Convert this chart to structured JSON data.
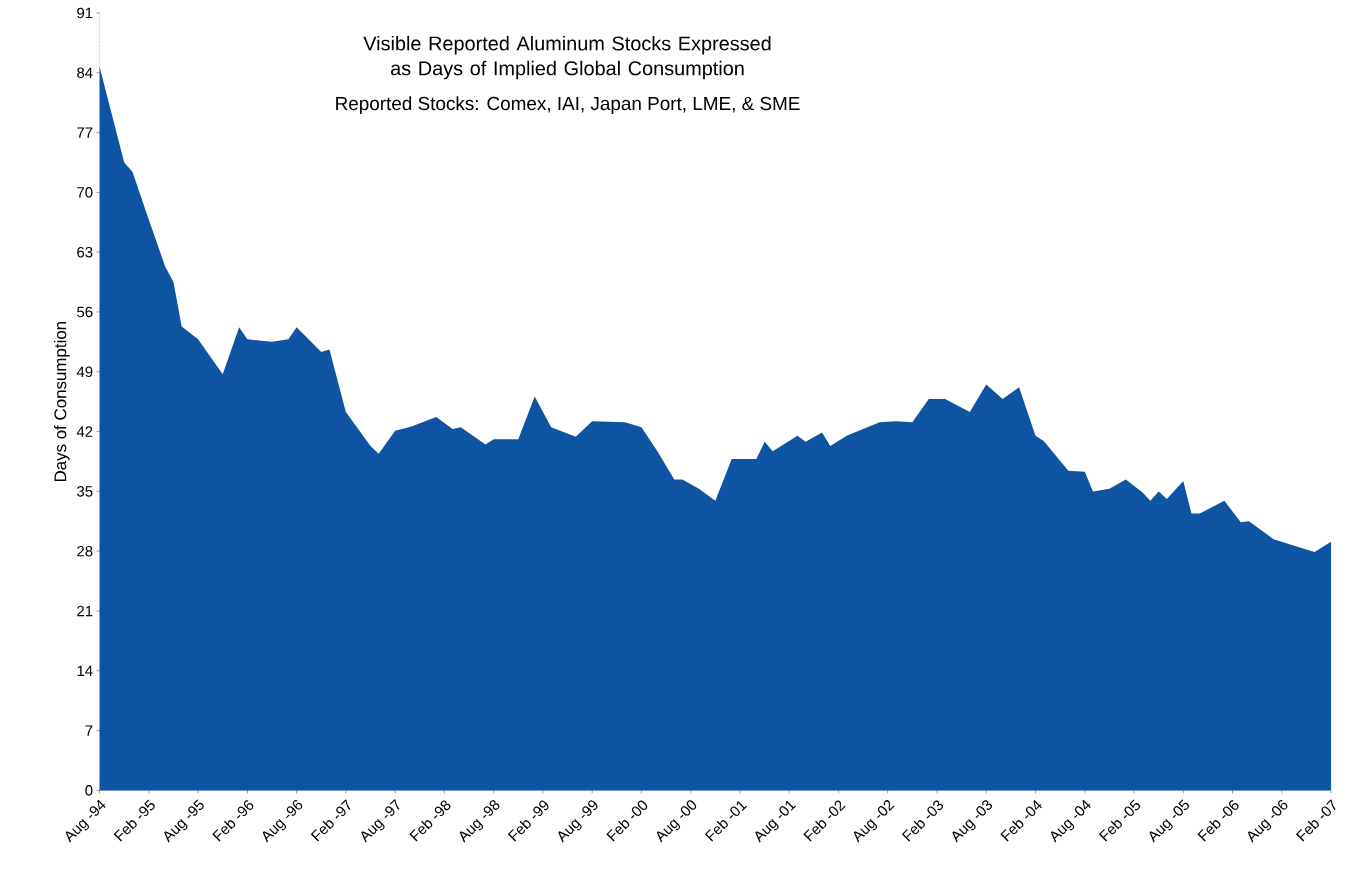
{
  "chart_data": {
    "type": "area",
    "title": "Visible Reported Aluminum Stocks Expressed\nas Days of Implied Global Consumption",
    "subtitle": "Reported Stocks:  Comex, IAI, Japan Port, LME, & SME",
    "ylabel": "Days of Consumption",
    "x": [
      "1994-08",
      "1994-11",
      "1994-12",
      "1995-02",
      "1995-04",
      "1995-05",
      "1995-06",
      "1995-08",
      "1995-11",
      "1996-01",
      "1996-02",
      "1996-05",
      "1996-07",
      "1996-08",
      "1996-11",
      "1996-12",
      "1997-02",
      "1997-05",
      "1997-06",
      "1997-08",
      "1997-10",
      "1998-01",
      "1998-03",
      "1998-04",
      "1998-07",
      "1998-08",
      "1998-11",
      "1999-01",
      "1999-03",
      "1999-06",
      "1999-08",
      "1999-12",
      "2000-02",
      "2000-04",
      "2000-06",
      "2000-07",
      "2000-09",
      "2000-11",
      "2001-01",
      "2001-04",
      "2001-05",
      "2001-06",
      "2001-09",
      "2001-10",
      "2001-12",
      "2002-01",
      "2002-03",
      "2002-07",
      "2002-09",
      "2002-11",
      "2003-01",
      "2003-03",
      "2003-06",
      "2003-08",
      "2003-10",
      "2003-12",
      "2004-02",
      "2004-03",
      "2004-06",
      "2004-08",
      "2004-09",
      "2004-11",
      "2005-01",
      "2005-03",
      "2005-04",
      "2005-05",
      "2005-06",
      "2005-08",
      "2005-09",
      "2005-10",
      "2006-01",
      "2006-03",
      "2006-04",
      "2006-07",
      "2006-10",
      "2006-12",
      "2007-02"
    ],
    "series": [
      {
        "color": "#0f54a3",
        "values": [
          84.7,
          73.5,
          72.4,
          66.8,
          61.3,
          59.5,
          54.3,
          52.8,
          48.7,
          54.2,
          52.8,
          52.5,
          52.8,
          54.2,
          51.3,
          51.6,
          44.3,
          40.3,
          39.4,
          42.1,
          42.6,
          43.7,
          42.3,
          42.5,
          40.5,
          41.1,
          41.1,
          46.1,
          42.5,
          41.4,
          43.2,
          43.1,
          42.5,
          39.6,
          36.4,
          36.4,
          35.3,
          33.9,
          38.8,
          38.8,
          40.8,
          39.7,
          41.5,
          40.8,
          41.9,
          40.3,
          41.5,
          43.1,
          43.2,
          43.1,
          45.8,
          45.8,
          44.3,
          47.5,
          45.8,
          47.2,
          41.5,
          40.9,
          37.4,
          37.3,
          35.0,
          35.3,
          36.4,
          34.9,
          33.9,
          35.0,
          34.1,
          36.2,
          32.4,
          32.4,
          33.9,
          31.4,
          31.5,
          29.4,
          28.5,
          27.9,
          29.1
        ]
      }
    ],
    "xlim": [
      "1994-08",
      "2007-02"
    ],
    "xticks": [
      {
        "value": "1994-08",
        "label": "Aug -94"
      },
      {
        "value": "1995-02",
        "label": "Feb -95"
      },
      {
        "value": "1995-08",
        "label": "Aug -95"
      },
      {
        "value": "1996-02",
        "label": "Feb -96"
      },
      {
        "value": "1996-08",
        "label": "Aug -96"
      },
      {
        "value": "1997-02",
        "label": "Feb -97"
      },
      {
        "value": "1997-08",
        "label": "Aug -97"
      },
      {
        "value": "1998-02",
        "label": "Feb -98"
      },
      {
        "value": "1998-08",
        "label": "Aug -98"
      },
      {
        "value": "1999-02",
        "label": "Feb -99"
      },
      {
        "value": "1999-08",
        "label": "Aug -99"
      },
      {
        "value": "2000-02",
        "label": "Feb -00"
      },
      {
        "value": "2000-08",
        "label": "Aug -00"
      },
      {
        "value": "2001-02",
        "label": "Feb -01"
      },
      {
        "value": "2001-08",
        "label": "Aug -01"
      },
      {
        "value": "2002-02",
        "label": "Feb -02"
      },
      {
        "value": "2002-08",
        "label": "Aug -02"
      },
      {
        "value": "2003-02",
        "label": "Feb -03"
      },
      {
        "value": "2003-08",
        "label": "Aug -03"
      },
      {
        "value": "2004-02",
        "label": "Feb -04"
      },
      {
        "value": "2004-08",
        "label": "Aug -04"
      },
      {
        "value": "2005-02",
        "label": "Feb -05"
      },
      {
        "value": "2005-08",
        "label": "Aug -05"
      },
      {
        "value": "2006-02",
        "label": "Feb -06"
      },
      {
        "value": "2006-08",
        "label": "Aug -06"
      },
      {
        "value": "2007-02",
        "label": "Feb -07"
      }
    ],
    "ylim": [
      0,
      91
    ],
    "yticks": [
      0,
      7,
      14,
      21,
      28,
      35,
      42,
      49,
      56,
      63,
      70,
      77,
      84,
      91
    ],
    "grid": false
  }
}
